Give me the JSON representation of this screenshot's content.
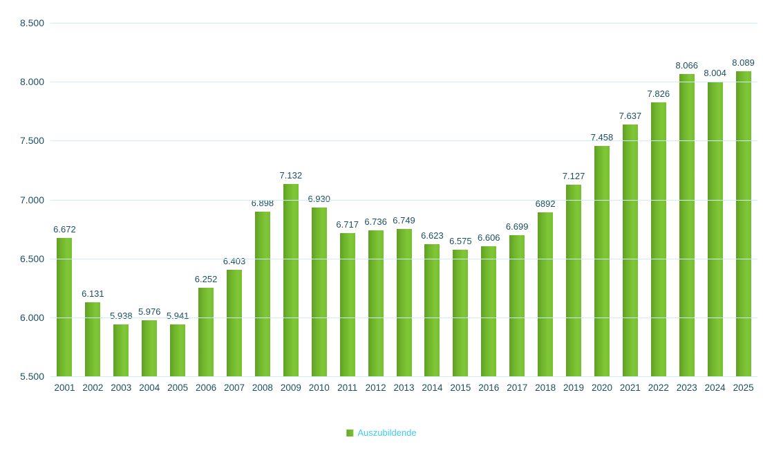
{
  "chart_data": {
    "type": "bar",
    "title": "",
    "xlabel": "",
    "ylabel": "",
    "categories": [
      "2001",
      "2002",
      "2003",
      "2004",
      "2005",
      "2006",
      "2007",
      "2008",
      "2009",
      "2010",
      "2011",
      "2012",
      "2013",
      "2014",
      "2015",
      "2016",
      "2017",
      "2018",
      "2019",
      "2020",
      "2021",
      "2022",
      "2023",
      "2024",
      "2025"
    ],
    "series": [
      {
        "name": "Auszubildende",
        "values": [
          6672,
          6131,
          5938,
          5976,
          5941,
          6252,
          6403,
          6898,
          7132,
          6930,
          6717,
          6736,
          6749,
          6623,
          6575,
          6606,
          6699,
          6892,
          7127,
          7458,
          7637,
          7826,
          8066,
          8004,
          8089
        ]
      }
    ],
    "value_labels": [
      "6.672",
      "6.131",
      "5.938",
      "5.976",
      "5.941",
      "6.252",
      "6.403",
      "6.898",
      "7.132",
      "6.930",
      "6.717",
      "6.736",
      "6.749",
      "6.623",
      "6.575",
      "6.606",
      "6.699",
      "6892",
      "7.127",
      "7.458",
      "7.637",
      "7.826",
      "8.066",
      "8.004",
      "8.089"
    ],
    "y_ticks": [
      "8.500",
      "8.000",
      "7.500",
      "7.000",
      "6.500",
      "6.000",
      "5.500"
    ],
    "ylim": [
      5500,
      8500
    ],
    "grid": "horizontal",
    "legend_position": "bottom",
    "colors": {
      "bar_dark": "#619f25",
      "bar_main": "#74bd2f",
      "bar_light": "#80c738",
      "axis_text": "#1d4f63",
      "gridline": "#cdeef6",
      "legend_text": "#3ecde8",
      "background": "#ffffff"
    }
  },
  "legend": {
    "label": "Auszubildende"
  }
}
